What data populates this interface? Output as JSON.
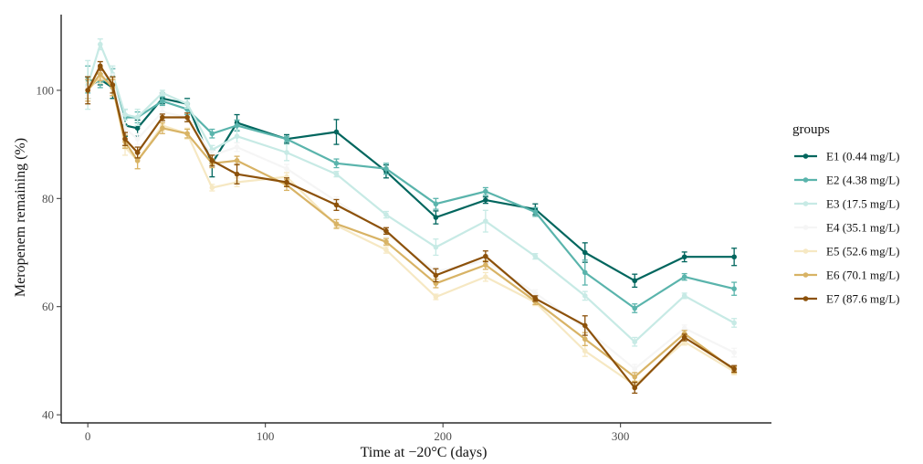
{
  "chart_data": {
    "type": "line",
    "xlabel": "Time at −20°C (days)",
    "ylabel": "Meropenem remaining (%)",
    "xlim": [
      -15,
      385
    ],
    "ylim": [
      38.5,
      114
    ],
    "xticks": [
      0,
      100,
      200,
      300
    ],
    "yticks": [
      40,
      60,
      80,
      100
    ],
    "grid": false,
    "legend_position": "right",
    "legend_title": "groups",
    "x": [
      0,
      7,
      14,
      21,
      28,
      42,
      56,
      70,
      84,
      112,
      140,
      168,
      196,
      224,
      252,
      280,
      308,
      336,
      364
    ],
    "series": [
      {
        "name": "E1 (0.44 mg/L)",
        "color": "#01665e",
        "values": [
          100.5,
          102.0,
          100.5,
          93.5,
          93.0,
          98.5,
          97.5,
          86.5,
          94.0,
          91.0,
          92.3,
          85.0,
          76.5,
          79.7,
          78.0,
          70.0,
          64.8,
          69.2,
          69.2
        ],
        "errors": [
          2.0,
          1.0,
          2.0,
          2.0,
          1.5,
          1.0,
          1.0,
          2.5,
          1.5,
          0.8,
          2.3,
          1.2,
          1.2,
          0.6,
          1.0,
          1.8,
          1.2,
          0.9,
          1.6
        ]
      },
      {
        "name": "E2 (4.38 mg/L)",
        "color": "#5ab4ac",
        "values": [
          102.0,
          101.5,
          102.5,
          95.0,
          95.0,
          98.0,
          96.5,
          92.0,
          93.5,
          91.0,
          86.5,
          85.5,
          79.0,
          81.3,
          77.5,
          66.3,
          59.7,
          65.5,
          63.3
        ],
        "errors": [
          2.5,
          1.0,
          1.5,
          1.5,
          1.0,
          0.8,
          1.0,
          0.8,
          1.0,
          0.5,
          0.8,
          1.0,
          1.0,
          0.7,
          0.8,
          2.3,
          0.8,
          0.6,
          1.2
        ]
      },
      {
        "name": "E3 (17.5 mg/L)",
        "color": "#c7eae5",
        "values": [
          101.0,
          108.5,
          103.0,
          95.5,
          95.0,
          99.5,
          97.5,
          89.0,
          91.5,
          88.5,
          84.5,
          77.0,
          71.0,
          75.8,
          69.3,
          62.0,
          53.5,
          62.0,
          57.0
        ],
        "errors": [
          4.5,
          1.0,
          1.5,
          1.0,
          1.5,
          0.5,
          0.8,
          0.8,
          1.2,
          1.5,
          0.5,
          0.6,
          1.5,
          2.0,
          0.5,
          0.8,
          0.8,
          0.5,
          0.8
        ]
      },
      {
        "name": "E4 (35.1 mg/L)",
        "color": "#f5f5f5",
        "values": [
          100.5,
          103.0,
          102.0,
          93.0,
          91.0,
          96.0,
          95.0,
          88.0,
          89.5,
          85.5,
          79.5,
          73.5,
          66.5,
          68.5,
          62.5,
          56.0,
          48.5,
          56.0,
          51.5
        ],
        "errors": [
          1.5,
          1.0,
          1.0,
          1.0,
          1.0,
          0.8,
          0.8,
          0.8,
          0.8,
          0.8,
          0.8,
          0.6,
          0.8,
          0.8,
          0.6,
          1.0,
          0.8,
          0.6,
          0.8
        ]
      },
      {
        "name": "E5 (52.6 mg/L)",
        "color": "#f6e8c3",
        "values": [
          100.0,
          102.5,
          101.0,
          89.5,
          87.0,
          93.5,
          92.0,
          82.0,
          83.0,
          84.0,
          75.0,
          70.5,
          61.8,
          65.5,
          60.8,
          51.8,
          45.5,
          53.5,
          48.0
        ],
        "errors": [
          1.5,
          1.2,
          1.2,
          1.5,
          1.5,
          1.0,
          1.0,
          0.6,
          0.8,
          0.8,
          0.6,
          0.6,
          0.5,
          0.8,
          0.6,
          1.0,
          0.6,
          0.6,
          0.6
        ]
      },
      {
        "name": "E6 (70.1 mg/L)",
        "color": "#d8b365",
        "values": [
          100.0,
          103.0,
          100.5,
          90.5,
          87.0,
          93.0,
          92.0,
          86.5,
          87.0,
          82.5,
          75.3,
          72.0,
          64.3,
          67.7,
          61.0,
          54.0,
          47.0,
          55.0,
          48.3
        ],
        "errors": [
          2.0,
          1.2,
          1.5,
          1.2,
          1.5,
          1.0,
          0.8,
          0.8,
          0.8,
          1.0,
          0.8,
          0.6,
          0.8,
          0.8,
          0.6,
          1.2,
          0.8,
          0.6,
          0.6
        ]
      },
      {
        "name": "E7 (87.6 mg/L)",
        "color": "#8c510a",
        "values": [
          100.0,
          104.5,
          101.0,
          91.0,
          88.5,
          95.0,
          95.0,
          87.0,
          84.5,
          83.0,
          78.8,
          74.0,
          65.8,
          69.3,
          61.5,
          56.5,
          45.0,
          54.3,
          48.5
        ],
        "errors": [
          2.5,
          0.8,
          1.5,
          1.2,
          1.0,
          0.6,
          0.8,
          1.0,
          1.8,
          0.8,
          1.0,
          0.6,
          1.2,
          1.0,
          0.5,
          1.8,
          1.0,
          0.6,
          0.6
        ]
      }
    ]
  }
}
